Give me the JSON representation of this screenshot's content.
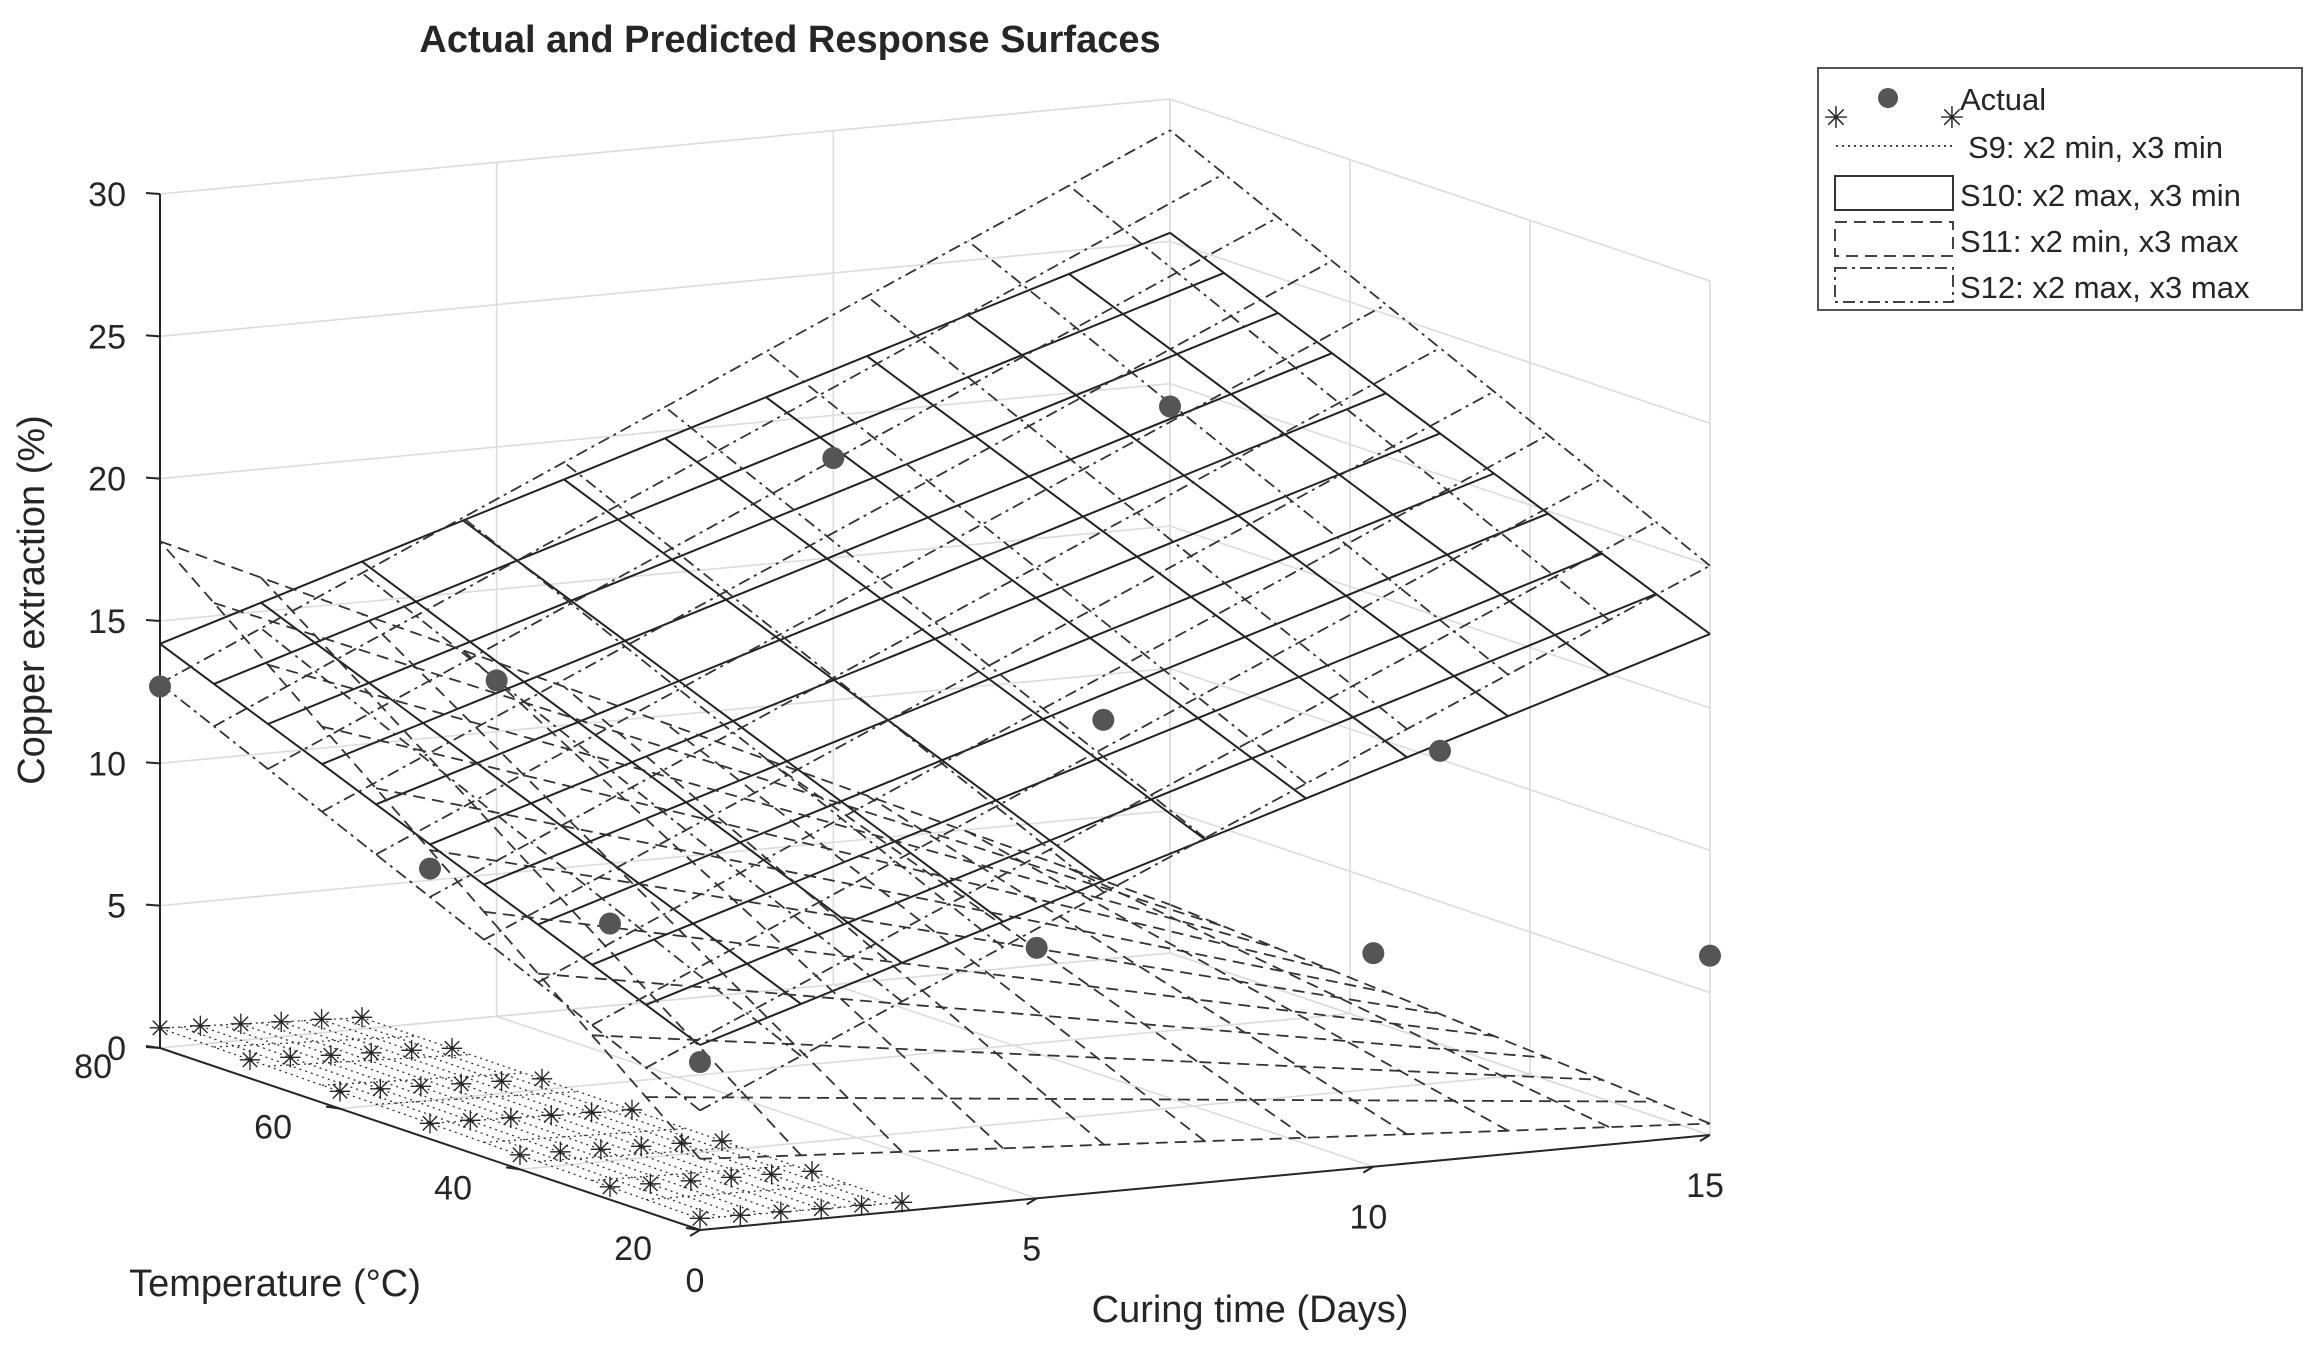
{
  "chart_data": {
    "type": "surface3d",
    "title": "Actual and Predicted Response Surfaces",
    "xlabel": "Curing time (Days)",
    "ylabel": "Temperature (°C)",
    "zlabel": "Copper extraction (%)",
    "xlim": [
      0,
      15
    ],
    "ylim": [
      20,
      80
    ],
    "zlim": [
      0,
      30
    ],
    "x_ticks": [
      0,
      5,
      10,
      15
    ],
    "y_ticks": [
      20,
      40,
      60,
      80
    ],
    "z_ticks": [
      0,
      5,
      10,
      15,
      20,
      25,
      30
    ],
    "grid": true,
    "legend_position": "top-right outside",
    "legend": [
      {
        "key": "actual",
        "label": "Actual",
        "style": "filled-circle"
      },
      {
        "key": "s9",
        "label": "S9: x2 min, x3 min",
        "style": "dotted-asterisk"
      },
      {
        "key": "s10",
        "label": "S10: x2 max, x3 min",
        "style": "solid"
      },
      {
        "key": "s11",
        "label": "S11: x2 min, x3 max",
        "style": "dashed"
      },
      {
        "key": "s12",
        "label": "S12: x2 max, x3 max",
        "style": "dash-dot"
      }
    ],
    "actual_points": [
      {
        "x": 0,
        "y": 80,
        "z": 12.7
      },
      {
        "x": 0,
        "y": 50,
        "z": 9.5
      },
      {
        "x": 0,
        "y": 30,
        "z": 9.7
      },
      {
        "x": 0,
        "y": 20,
        "z": 5.9
      },
      {
        "x": 5,
        "y": 80,
        "z": 11.8
      },
      {
        "x": 5,
        "y": 20,
        "z": 8.8
      },
      {
        "x": 10,
        "y": 80,
        "z": 18.5
      },
      {
        "x": 10,
        "y": 20,
        "z": 7.5
      },
      {
        "x": 15,
        "y": 80,
        "z": 19.2
      },
      {
        "x": 15,
        "y": 50,
        "z": 10.3
      },
      {
        "x": 15,
        "y": 20,
        "z": 6.3
      },
      {
        "x": 10,
        "y": 50,
        "z": 12.5
      }
    ],
    "surfaces": [
      {
        "key": "s9",
        "name": "S9: x2 min, x3 min",
        "x_range": [
          0,
          3
        ],
        "z_corners": {
          "x0_y20": 0.4,
          "x0_y80": 0.7,
          "x1_y20": 0.3,
          "x1_y80": 0.4
        }
      },
      {
        "key": "s10",
        "name": "S10: x2 max, x3 min",
        "x_range": [
          0,
          15
        ],
        "z_corners": {
          "x0_y20": 6.5,
          "x0_y80": 14.2,
          "x1_y20": 17.6,
          "x1_y80": 25.3
        }
      },
      {
        "key": "s11",
        "name": "S11: x2 min, x3 max",
        "x_range": [
          0,
          15
        ],
        "z_corners": {
          "x0_y20": 2.5,
          "x0_y80": 17.8,
          "x1_y20": 0.4,
          "x1_y80": 1.7
        }
      },
      {
        "key": "s12",
        "name": "S12: x2 max, x3 max",
        "x_range": [
          0,
          15
        ],
        "z_corners": {
          "x0_y20": 4.2,
          "x0_y80": 12.8,
          "x1_y20": 20.0,
          "x1_y80": 28.9
        }
      }
    ]
  }
}
